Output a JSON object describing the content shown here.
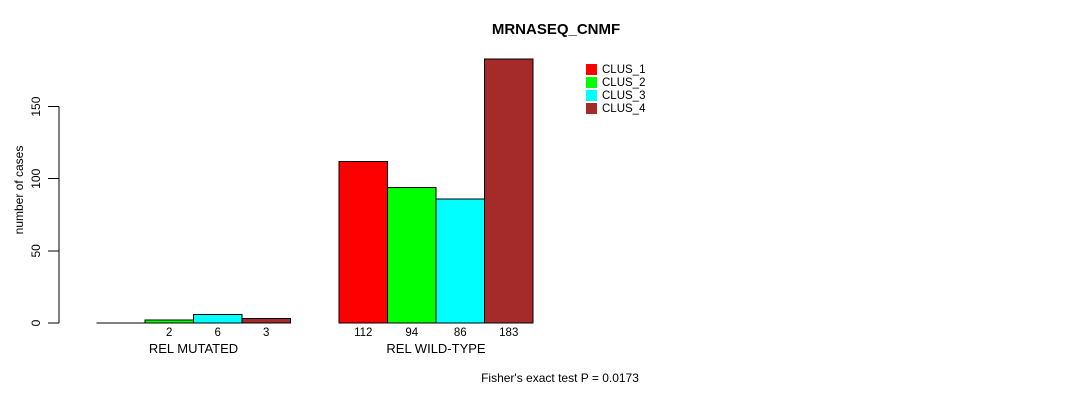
{
  "title": "MRNASEQ_CNMF",
  "footer": "Fisher's exact test P = 0.0173",
  "chart_data": {
    "type": "bar",
    "title": "MRNASEQ_CNMF",
    "xlabel": "",
    "ylabel": "number of cases",
    "ylim": [
      0,
      183
    ],
    "yticks": [
      0,
      50,
      100,
      150
    ],
    "grid": false,
    "legend_position": "top-right",
    "categories": [
      "REL MUTATED",
      "REL WILD-TYPE"
    ],
    "series": [
      {
        "name": "CLUS_1",
        "color": "#FF0000",
        "values": [
          0,
          112
        ]
      },
      {
        "name": "CLUS_2",
        "color": "#00FF00",
        "values": [
          2,
          94
        ]
      },
      {
        "name": "CLUS_3",
        "color": "#00FFFF",
        "values": [
          6,
          86
        ]
      },
      {
        "name": "CLUS_4",
        "color": "#A52A2A",
        "values": [
          3,
          183
        ]
      }
    ],
    "bar_value_labels": [
      [
        "",
        "2",
        "6",
        "3"
      ],
      [
        "112",
        "94",
        "86",
        "183"
      ]
    ],
    "annotation": "Fisher's exact test P = 0.0173"
  }
}
